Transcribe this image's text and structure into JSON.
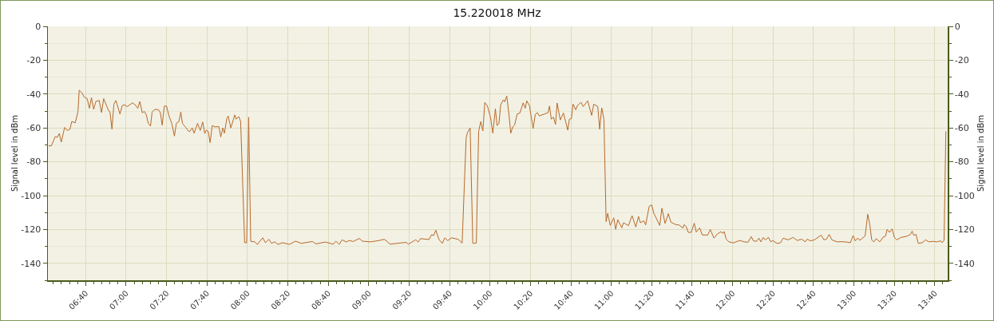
{
  "chart_data": {
    "type": "line",
    "title": "15.220018 MHz",
    "ylabel": "Signal level in dBm",
    "y2label": "Signal level in dBm",
    "color": "#b8692a",
    "grid": true,
    "x": [
      6.361,
      6.383,
      6.416,
      6.432,
      6.449,
      6.465,
      6.493,
      6.515,
      6.537,
      6.552,
      6.58,
      6.603,
      6.613,
      6.636,
      6.653,
      6.679,
      6.697,
      6.714,
      6.732,
      6.751,
      6.778,
      6.797,
      6.815,
      6.855,
      6.866,
      6.883,
      6.899,
      6.916,
      6.949,
      6.968,
      6.986,
      7.008,
      7.026,
      7.052,
      7.074,
      7.096,
      7.113,
      7.133,
      7.151,
      7.166,
      7.183,
      7.201,
      7.214,
      7.238,
      7.267,
      7.282,
      7.297,
      7.315,
      7.333,
      7.354,
      7.376,
      7.398,
      7.414,
      7.435,
      7.451,
      7.464,
      7.491,
      7.512,
      7.523,
      7.545,
      7.56,
      7.589,
      7.611,
      7.631,
      7.648,
      7.662,
      7.677,
      7.692,
      7.71,
      7.731,
      7.764,
      7.78,
      7.797,
      7.81,
      7.83,
      7.841,
      7.863,
      7.896,
      7.907,
      7.929,
      7.944,
      7.977,
      7.994,
      8.01,
      8.027,
      8.06,
      8.082,
      8.126,
      8.148,
      8.177,
      8.198,
      8.225,
      8.251,
      8.29,
      8.346,
      8.396,
      8.444,
      8.536,
      8.565,
      8.642,
      8.707,
      8.729,
      8.757,
      8.78,
      8.816,
      8.839,
      8.872,
      8.922,
      8.948,
      9.014,
      9.08,
      9.128,
      9.156,
      9.174,
      9.233,
      9.31,
      9.326,
      9.387,
      9.408,
      9.426,
      9.497,
      9.518,
      9.536,
      9.553,
      9.579,
      9.606,
      9.628,
      9.65,
      9.683,
      9.737,
      9.77,
      9.803,
      9.814,
      9.836,
      9.858,
      9.887,
      9.906,
      9.924,
      9.941,
      9.957,
      9.979,
      10.005,
      10.023,
      10.044,
      10.058,
      10.073,
      10.088,
      10.11,
      10.121,
      10.138,
      10.158,
      10.171,
      10.187,
      10.202,
      10.224,
      10.246,
      10.273,
      10.29,
      10.303,
      10.325,
      10.355,
      10.373,
      10.391,
      10.406,
      10.478,
      10.49,
      10.505,
      10.523,
      10.54,
      10.553,
      10.579,
      10.605,
      10.641,
      10.654,
      10.671,
      10.684,
      10.707,
      10.72,
      10.75,
      10.768,
      10.805,
      10.838,
      10.855,
      10.888,
      10.904,
      10.921,
      10.939,
      10.957,
      10.97,
      10.991,
      11.02,
      11.036,
      11.053,
      11.086,
      11.101,
      11.141,
      11.171,
      11.202,
      11.224,
      11.239,
      11.268,
      11.283,
      11.312,
      11.333,
      11.351,
      11.399,
      11.417,
      11.443,
      11.47,
      11.491,
      11.531,
      11.557,
      11.59,
      11.601,
      11.618,
      11.634,
      11.658,
      11.684,
      11.7,
      11.728,
      11.75,
      11.794,
      11.816,
      11.846,
      11.875,
      11.904,
      11.919,
      11.93,
      11.947,
      11.969,
      12.006,
      12.039,
      12.062,
      12.094,
      12.127,
      12.154,
      12.171,
      12.197,
      12.217,
      12.233,
      12.252,
      12.269,
      12.296,
      12.313,
      12.331,
      12.364,
      12.394,
      12.417,
      12.456,
      12.5,
      12.532,
      12.57,
      12.598,
      12.614,
      12.642,
      12.675,
      12.73,
      12.752,
      12.774,
      12.796,
      12.818,
      12.861,
      12.905,
      12.949,
      12.971,
      12.993,
      13.011,
      13.032,
      13.048,
      13.092,
      13.114,
      13.131,
      13.147,
      13.164,
      13.184,
      13.213,
      13.241,
      13.26,
      13.274,
      13.293,
      13.315,
      13.333,
      13.355,
      13.387,
      13.432,
      13.464,
      13.48,
      13.493,
      13.512,
      13.53,
      13.563,
      13.591,
      13.618,
      13.651,
      13.683,
      13.716,
      13.727,
      13.743,
      13.758
    ],
    "values": [
      -70.6,
      -70.6,
      -65.1,
      -65.6,
      -63.3,
      -68.4,
      -59.7,
      -61.5,
      -60.8,
      -56.2,
      -57,
      -50.3,
      -37.7,
      -39.3,
      -41.7,
      -42.7,
      -48.4,
      -42.1,
      -49,
      -44.3,
      -43.8,
      -50.9,
      -42.7,
      -49.8,
      -50.3,
      -60.7,
      -45.9,
      -43.8,
      -51.8,
      -46.8,
      -46.3,
      -47.4,
      -46.5,
      -45.2,
      -46.3,
      -48.4,
      -44.4,
      -51,
      -50.3,
      -52.3,
      -57.3,
      -58.9,
      -50.6,
      -49,
      -49.3,
      -51,
      -58.4,
      -47.1,
      -47.1,
      -53.1,
      -57.3,
      -64.8,
      -57.3,
      -56.2,
      -50.6,
      -57.3,
      -59.7,
      -61.7,
      -62.2,
      -60,
      -63.1,
      -57.3,
      -61.5,
      -56.5,
      -63.3,
      -61.3,
      -62.1,
      -68.7,
      -58.6,
      -59.4,
      -59.2,
      -65.3,
      -60,
      -63.1,
      -54.5,
      -53,
      -60,
      -52.3,
      -54.8,
      -53.3,
      -56.2,
      -127.8,
      -127.8,
      -53.7,
      -127,
      -127.3,
      -128.8,
      -124.9,
      -127.8,
      -125.8,
      -128.2,
      -127.3,
      -128.8,
      -127.8,
      -128.8,
      -126.9,
      -128.2,
      -127.1,
      -128.5,
      -127.4,
      -128.7,
      -126.9,
      -128.8,
      -126.1,
      -127.4,
      -126.5,
      -127.1,
      -125.3,
      -126.9,
      -127.3,
      -126.6,
      -125.8,
      -127.3,
      -128.7,
      -128.2,
      -127.6,
      -128.7,
      -126.1,
      -127.4,
      -125.4,
      -125.9,
      -123.1,
      -123.5,
      -120.4,
      -125.9,
      -128.2,
      -124.9,
      -126.6,
      -124.9,
      -125.8,
      -128,
      -65.9,
      -62.8,
      -60,
      -128.2,
      -128,
      -62,
      -56.2,
      -61.7,
      -45,
      -47.1,
      -54.2,
      -63.1,
      -48.7,
      -58.6,
      -57.4,
      -46.3,
      -43.4,
      -44.5,
      -41.2,
      -53.4,
      -63.1,
      -59.4,
      -58.4,
      -51.8,
      -51.2,
      -45.2,
      -48.4,
      -44,
      -46.8,
      -60.4,
      -52,
      -51,
      -52.9,
      -51,
      -47.1,
      -54.8,
      -53.6,
      -58,
      -45.3,
      -55.3,
      -51.2,
      -61.3,
      -54.8,
      -54.5,
      -45.9,
      -49.3,
      -46.8,
      -44.9,
      -47.4,
      -44,
      -52.6,
      -46,
      -47.3,
      -60.8,
      -48.1,
      -55,
      -115.4,
      -110.5,
      -117.6,
      -113.1,
      -119.9,
      -114.2,
      -119,
      -116,
      -117.7,
      -111.8,
      -118.5,
      -112.3,
      -116,
      -114.9,
      -117.3,
      -106.3,
      -105.5,
      -110.5,
      -117.6,
      -107.4,
      -116.4,
      -110.7,
      -115.7,
      -117.1,
      -117.3,
      -119.1,
      -117.1,
      -118.4,
      -121.7,
      -121.7,
      -116.3,
      -121.5,
      -119.1,
      -123.2,
      -123.3,
      -120,
      -125.1,
      -122.6,
      -121.3,
      -122.3,
      -121.2,
      -125.7,
      -127.3,
      -127.9,
      -127,
      -126.5,
      -127.3,
      -127.5,
      -124.2,
      -126.7,
      -127,
      -125.1,
      -127.3,
      -124.7,
      -126.1,
      -124.7,
      -127.3,
      -126.5,
      -128.2,
      -127.9,
      -125.1,
      -126.1,
      -124.7,
      -126.5,
      -125.7,
      -127.3,
      -125.7,
      -126.7,
      -126.1,
      -123.3,
      -126.1,
      -125.7,
      -122.9,
      -126.1,
      -127.3,
      -127.2,
      -127.5,
      -127.8,
      -123.6,
      -126.7,
      -125,
      -126.4,
      -123.9,
      -111,
      -117.3,
      -126.2,
      -127.3,
      -125.4,
      -127.3,
      -124.5,
      -123.9,
      -120,
      -121.7,
      -119.7,
      -124.7,
      -126.1,
      -124.7,
      -124.1,
      -123,
      -121,
      -123.4,
      -122.9,
      -128.2,
      -127.8,
      -126.1,
      -127.3,
      -127,
      -127.3,
      -126.7,
      -127.8,
      -126.4,
      -62
    ],
    "xlim": [
      6.355,
      13.773
    ],
    "xticks": [
      {
        "value": 6.6667,
        "label": "06:40"
      },
      {
        "value": 7,
        "label": "07:00"
      },
      {
        "value": 7.3333,
        "label": "07:20"
      },
      {
        "value": 7.6667,
        "label": "07:40"
      },
      {
        "value": 8,
        "label": "08:00"
      },
      {
        "value": 8.3333,
        "label": "08:20"
      },
      {
        "value": 8.6667,
        "label": "08:40"
      },
      {
        "value": 9,
        "label": "09:00"
      },
      {
        "value": 9.3333,
        "label": "09:20"
      },
      {
        "value": 9.6667,
        "label": "09:40"
      },
      {
        "value": 10,
        "label": "10:00"
      },
      {
        "value": 10.3333,
        "label": "10:20"
      },
      {
        "value": 10.6667,
        "label": "10:40"
      },
      {
        "value": 11,
        "label": "11:00"
      },
      {
        "value": 11.3333,
        "label": "11:20"
      },
      {
        "value": 11.6667,
        "label": "11:40"
      },
      {
        "value": 12,
        "label": "12:00"
      },
      {
        "value": 12.3333,
        "label": "12:20"
      },
      {
        "value": 12.6667,
        "label": "12:40"
      },
      {
        "value": 13,
        "label": "13:00"
      },
      {
        "value": 13.3333,
        "label": "13:20"
      },
      {
        "value": 13.6667,
        "label": "13:40"
      }
    ],
    "ylim": [
      -150,
      0
    ],
    "yticks": [
      0,
      -20,
      -40,
      -60,
      -80,
      -100,
      -120,
      -140
    ],
    "y2lim": [
      -150,
      0
    ],
    "y2ticks": [
      0,
      -20,
      -40,
      -60,
      -80,
      -100,
      -120,
      -140
    ]
  }
}
